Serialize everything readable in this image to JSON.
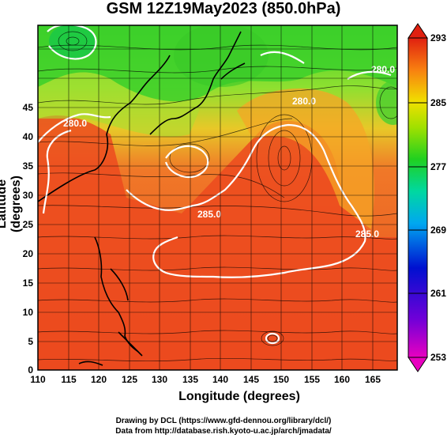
{
  "title": "GSM 12Z19May2023 (850.0hPa)",
  "xlabel": "Longitude (degrees)",
  "ylabel": "Latitude (degrees)",
  "x_ticks": [
    "110",
    "115",
    "120",
    "125",
    "130",
    "135",
    "140",
    "145",
    "150",
    "155",
    "160",
    "165"
  ],
  "y_ticks": [
    "0",
    "5",
    "10",
    "15",
    "20",
    "25",
    "30",
    "35",
    "40",
    "45"
  ],
  "colorbar_ticks": [
    "293",
    "285",
    "277",
    "269",
    "261",
    "253"
  ],
  "contour_labels": [
    "280.0",
    "280.0",
    "280.0",
    "280.0",
    "285.0",
    "285.0"
  ],
  "credit_line1": "Drawing by DCL (https://www.gfd-dennou.org/library/dcl/)",
  "credit_line2": "Data from http://database.rish.kyoto-u.ac.jp/arch/jmadata/",
  "colors": {
    "warm": "#e8401c",
    "mid": "#f4a020",
    "cool": "#48c830",
    "contour": "#ffffff",
    "grid": "#000000"
  }
}
